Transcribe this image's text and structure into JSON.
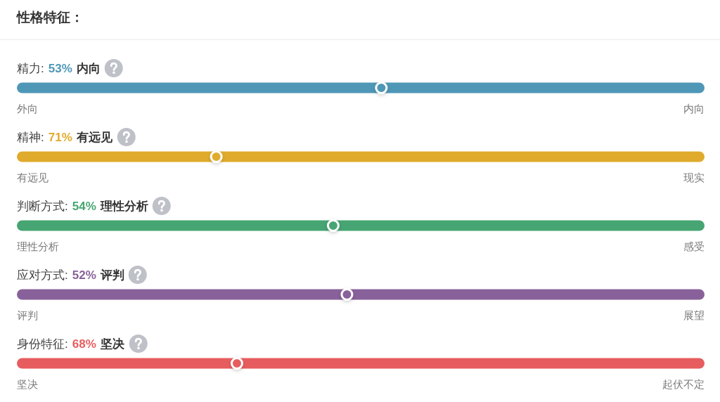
{
  "chart_data": [
    {
      "type": "other",
      "title": "性格特征："
    },
    {
      "type": "other",
      "title": "精力:",
      "categories": [
        "外向",
        "内向"
      ],
      "values": [
        null,
        53
      ],
      "value_labels": [
        null,
        "53%"
      ],
      "color": "#4f97b7"
    },
    {
      "type": "other",
      "title": "精神:",
      "categories": [
        "有远见",
        "现实"
      ],
      "values": [
        71,
        null
      ],
      "value_labels": [
        "71%",
        null
      ],
      "color": "#e0ab2d"
    },
    {
      "type": "other",
      "title": "判断方式:",
      "categories": [
        "理性分析",
        "感受"
      ],
      "values": [
        54,
        null
      ],
      "value_labels": [
        "54%",
        null
      ],
      "color": "#46a572"
    },
    {
      "type": "other",
      "title": "应对方式:",
      "categories": [
        "评判",
        "展望"
      ],
      "values": [
        52,
        null
      ],
      "value_labels": [
        "52%",
        null
      ],
      "color": "#88619a"
    },
    {
      "type": "other",
      "title": "身份特征:",
      "categories": [
        "坚决",
        "起伏不定"
      ],
      "values": [
        68,
        null
      ],
      "value_labels": [
        "68%",
        null
      ],
      "color": "#e75d5f"
    }
  ]
}
